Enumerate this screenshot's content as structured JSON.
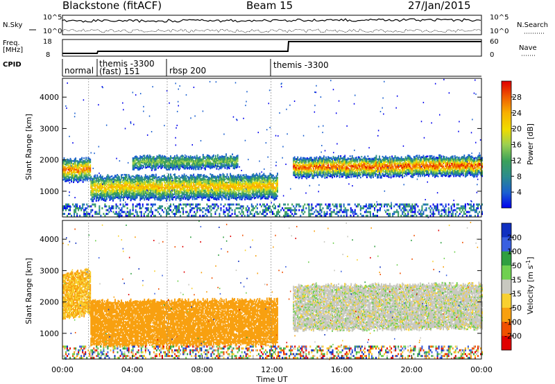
{
  "header": {
    "station": "Blackstone (fitACF)",
    "beam": "Beam 15",
    "date": "27/Jan/2015"
  },
  "nsky_panel": {
    "left_label": "N.Sky",
    "right_label": "N.Search",
    "ticks_left": [
      "10^5",
      "10^0"
    ],
    "ticks_right": [
      "10^5",
      "10^0"
    ]
  },
  "freq_panel": {
    "left_label_line1": "Freq.",
    "left_label_line2": "[MHz]",
    "ticks_left": [
      "18",
      "8"
    ],
    "ticks_right": [
      "60",
      "0"
    ],
    "right_label": "Nave"
  },
  "cpid_panel": {
    "label": "CPID",
    "segments": [
      {
        "name": "normal",
        "start": 0.0,
        "end": 1.5
      },
      {
        "name": "themis -3300 (fast) 151",
        "start": 1.5,
        "end": 6.0
      },
      {
        "name": "rbsp 200",
        "start": 6.0,
        "end": 11.95
      },
      {
        "name": "themis -3300",
        "start": 11.95,
        "end": 24.0
      }
    ],
    "labels": {
      "normal": "normal",
      "themis_line1": "themis -3300",
      "themis_line2": "(fast) 151",
      "rbsp": "rbsp 200",
      "themis2": "themis -3300"
    }
  },
  "chart_data": [
    {
      "type": "heatmap",
      "name": "power",
      "ylabel": "Slant Range [km]",
      "yticks": [
        1000,
        2000,
        3000,
        4000
      ],
      "ylim": [
        180,
        4600
      ],
      "xlim": [
        0,
        24
      ],
      "colorbar": {
        "label": "Power [dB]",
        "ticks": [
          28,
          24,
          20,
          16,
          12,
          8,
          4
        ],
        "range": [
          0,
          32
        ],
        "colors": [
          "#0000ee",
          "#1a5fd0",
          "#2c8c8c",
          "#3aa05a",
          "#9cd050",
          "#f0dc00",
          "#f8b000",
          "#f06000",
          "#e00000"
        ]
      },
      "bands": [
        {
          "t": [
            0,
            1.6
          ],
          "center": [
            1650,
            1700
          ],
          "width": 350,
          "level": 0.82
        },
        {
          "t": [
            1.6,
            12.3
          ],
          "center": [
            1100,
            1150
          ],
          "width": 380,
          "level": 0.7
        },
        {
          "t": [
            4,
            10
          ],
          "center": [
            1900,
            1950
          ],
          "width": 200,
          "level": 0.45
        },
        {
          "t": [
            13.2,
            24
          ],
          "center": [
            1750,
            1800
          ],
          "width": 300,
          "level": 0.88
        }
      ]
    },
    {
      "type": "heatmap",
      "name": "velocity",
      "ylabel": "Slant Range [km]",
      "yticks": [
        1000,
        2000,
        3000,
        4000
      ],
      "ylim": [
        180,
        4600
      ],
      "xlim": [
        0,
        24
      ],
      "xlabel": "Time UT",
      "xticks": [
        "00:00",
        "04:00",
        "08:00",
        "12:00",
        "16:00",
        "20:00",
        "00:00"
      ],
      "colorbar": {
        "label": "Velocity [m s-1]",
        "label_main": "Velocity [m s",
        "label_sup": "-1",
        "label_end": "]",
        "ticks": [
          "200",
          "100",
          "50",
          "15",
          "-15",
          "-50",
          "-100",
          "-200"
        ],
        "colors": [
          "#1030c0",
          "#3a60e0",
          "#2f9f40",
          "#70d050",
          "#c8c8c0",
          "#f8d030",
          "#f8a010",
          "#f05000",
          "#e00000"
        ]
      },
      "bands": [
        {
          "t": [
            0,
            1.6
          ],
          "center": [
            2200,
            2300
          ],
          "velocity": -50
        },
        {
          "t": [
            1.6,
            12.3
          ],
          "center": [
            1300,
            1350
          ],
          "velocity": -80
        },
        {
          "t": [
            13.2,
            24
          ],
          "center": [
            1800,
            1850
          ],
          "velocity": 0
        }
      ]
    }
  ]
}
